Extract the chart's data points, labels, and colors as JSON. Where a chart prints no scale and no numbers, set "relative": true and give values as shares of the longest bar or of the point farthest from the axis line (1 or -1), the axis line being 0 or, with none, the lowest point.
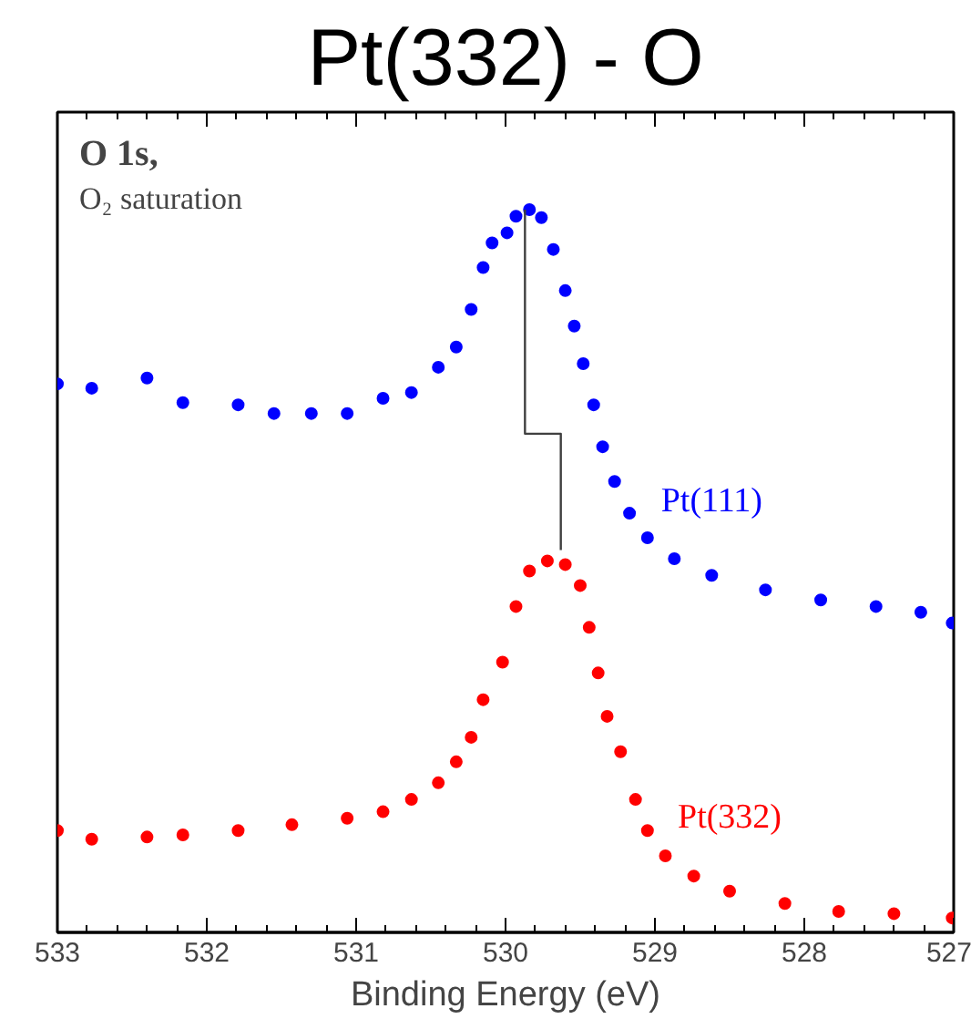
{
  "chart_data": {
    "type": "scatter",
    "title": "Pt(332) - O",
    "xlabel": "Binding Energy (eV)",
    "annotations": [
      "O 1s,",
      "O₂ saturation"
    ],
    "relative": true,
    "marker": "circle",
    "grid": false,
    "xlim": [
      533,
      527
    ],
    "xticks": [
      533,
      532,
      531,
      530,
      529,
      528,
      527
    ],
    "series": [
      {
        "name": "Pt(111)",
        "color": "#0000ff",
        "x": [
          533.0,
          532.77,
          532.4,
          532.16,
          531.79,
          531.55,
          531.3,
          531.06,
          530.82,
          530.63,
          530.45,
          530.33,
          530.23,
          530.15,
          530.09,
          529.99,
          529.93,
          529.84,
          529.76,
          529.68,
          529.6,
          529.54,
          529.48,
          529.41,
          529.35,
          529.27,
          529.17,
          529.05,
          528.87,
          528.62,
          528.26,
          527.89,
          527.52,
          527.22,
          527.01
        ],
        "values": [
          0.759,
          0.753,
          0.767,
          0.733,
          0.73,
          0.718,
          0.718,
          0.718,
          0.739,
          0.747,
          0.782,
          0.81,
          0.862,
          0.92,
          0.954,
          0.968,
          0.991,
          1.0,
          0.989,
          0.945,
          0.888,
          0.839,
          0.787,
          0.73,
          0.672,
          0.624,
          0.58,
          0.546,
          0.517,
          0.494,
          0.474,
          0.46,
          0.451,
          0.443,
          0.428
        ]
      },
      {
        "name": "Pt(332)",
        "color": "#ff0000",
        "x": [
          533.0,
          532.77,
          532.4,
          532.16,
          531.79,
          531.43,
          531.06,
          530.82,
          530.63,
          530.45,
          530.33,
          530.23,
          530.15,
          530.02,
          529.93,
          529.84,
          529.72,
          529.6,
          529.5,
          529.44,
          529.38,
          529.32,
          529.23,
          529.13,
          529.05,
          528.93,
          528.74,
          528.5,
          528.13,
          527.77,
          527.4,
          527.01
        ],
        "values": [
          0.141,
          0.129,
          0.132,
          0.135,
          0.141,
          0.149,
          0.158,
          0.167,
          0.184,
          0.207,
          0.236,
          0.27,
          0.322,
          0.374,
          0.451,
          0.5,
          0.514,
          0.509,
          0.48,
          0.422,
          0.359,
          0.299,
          0.25,
          0.184,
          0.141,
          0.106,
          0.078,
          0.057,
          0.04,
          0.029,
          0.026,
          0.02
        ]
      },
      {
        "type": "line",
        "color": "#404040",
        "marker": "none",
        "x": [
          529.87,
          529.87,
          529.63,
          529.63
        ],
        "values": [
          1.0,
          0.69,
          0.69,
          0.529
        ]
      }
    ]
  }
}
